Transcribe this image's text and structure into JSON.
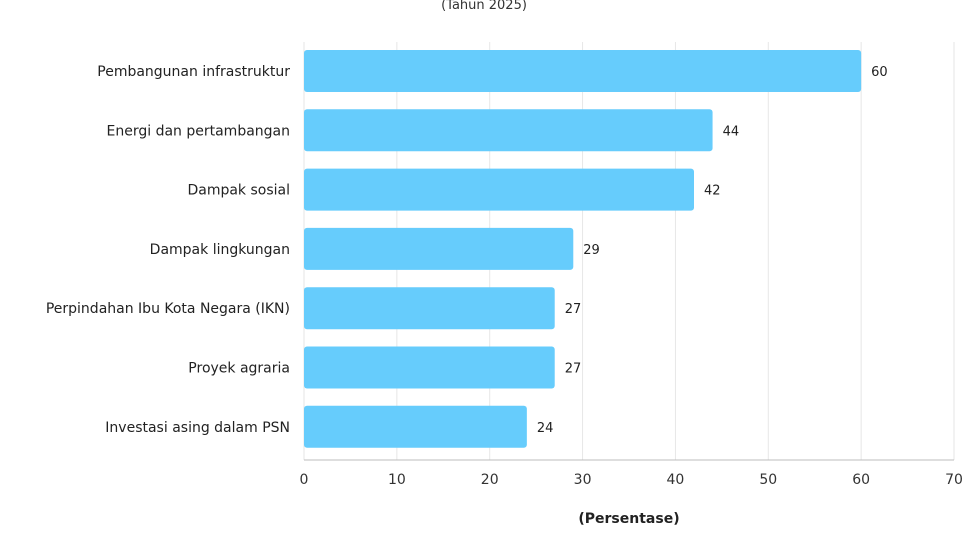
{
  "chart_data": {
    "type": "bar",
    "orientation": "horizontal",
    "subtitle": "(Tahun 2025)",
    "categories": [
      "Pembangunan infrastruktur",
      "Energi dan pertambangan",
      "Dampak sosial",
      "Dampak lingkungan",
      "Perpindahan Ibu Kota Negara (IKN)",
      "Proyek agraria",
      "Investasi asing dalam PSN"
    ],
    "values": [
      60,
      44,
      42,
      29,
      27,
      27,
      24
    ],
    "xlabel": "(Persentase)",
    "ylabel": "",
    "xlim": [
      0,
      70
    ],
    "x_ticks": [
      0,
      10,
      20,
      30,
      40,
      50,
      60,
      70
    ],
    "grid": true,
    "bar_color": "#66ccfc",
    "data_labels": true
  }
}
